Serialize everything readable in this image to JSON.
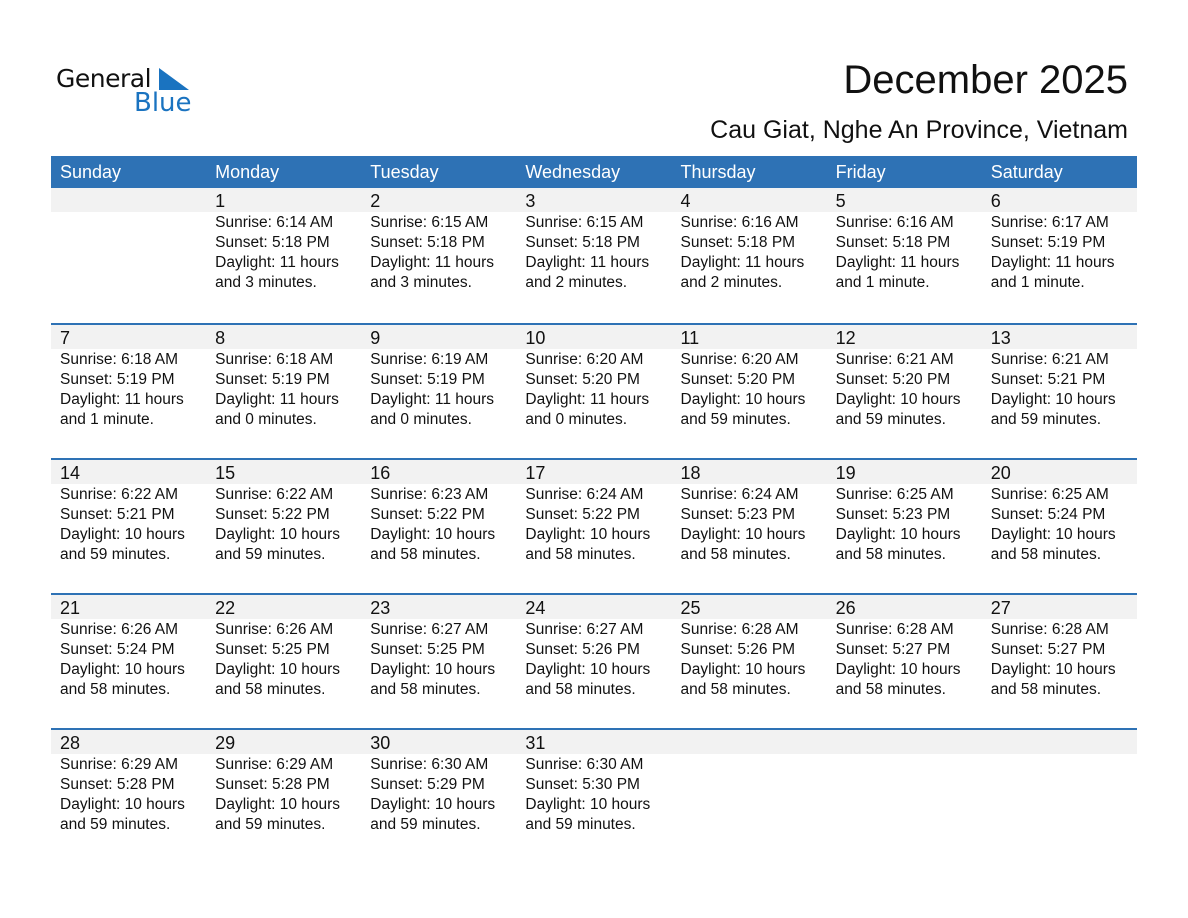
{
  "logo": {
    "general": "General",
    "blue": "Blue",
    "accent": "#1a73c0"
  },
  "title": "December 2025",
  "subtitle": "Cau Giat, Nghe An Province, Vietnam",
  "header_color": "#2e72b5",
  "weekdays": [
    "Sunday",
    "Monday",
    "Tuesday",
    "Wednesday",
    "Thursday",
    "Friday",
    "Saturday"
  ],
  "weeks": [
    [
      null,
      {
        "day": "1",
        "sunrise": "Sunrise: 6:14 AM",
        "sunset": "Sunset: 5:18 PM",
        "daylight": "Daylight: 11 hours",
        "daylight2": "and 3 minutes."
      },
      {
        "day": "2",
        "sunrise": "Sunrise: 6:15 AM",
        "sunset": "Sunset: 5:18 PM",
        "daylight": "Daylight: 11 hours",
        "daylight2": "and 3 minutes."
      },
      {
        "day": "3",
        "sunrise": "Sunrise: 6:15 AM",
        "sunset": "Sunset: 5:18 PM",
        "daylight": "Daylight: 11 hours",
        "daylight2": "and 2 minutes."
      },
      {
        "day": "4",
        "sunrise": "Sunrise: 6:16 AM",
        "sunset": "Sunset: 5:18 PM",
        "daylight": "Daylight: 11 hours",
        "daylight2": "and 2 minutes."
      },
      {
        "day": "5",
        "sunrise": "Sunrise: 6:16 AM",
        "sunset": "Sunset: 5:18 PM",
        "daylight": "Daylight: 11 hours",
        "daylight2": "and 1 minute."
      },
      {
        "day": "6",
        "sunrise": "Sunrise: 6:17 AM",
        "sunset": "Sunset: 5:19 PM",
        "daylight": "Daylight: 11 hours",
        "daylight2": "and 1 minute."
      }
    ],
    [
      {
        "day": "7",
        "sunrise": "Sunrise: 6:18 AM",
        "sunset": "Sunset: 5:19 PM",
        "daylight": "Daylight: 11 hours",
        "daylight2": "and 1 minute."
      },
      {
        "day": "8",
        "sunrise": "Sunrise: 6:18 AM",
        "sunset": "Sunset: 5:19 PM",
        "daylight": "Daylight: 11 hours",
        "daylight2": "and 0 minutes."
      },
      {
        "day": "9",
        "sunrise": "Sunrise: 6:19 AM",
        "sunset": "Sunset: 5:19 PM",
        "daylight": "Daylight: 11 hours",
        "daylight2": "and 0 minutes."
      },
      {
        "day": "10",
        "sunrise": "Sunrise: 6:20 AM",
        "sunset": "Sunset: 5:20 PM",
        "daylight": "Daylight: 11 hours",
        "daylight2": "and 0 minutes."
      },
      {
        "day": "11",
        "sunrise": "Sunrise: 6:20 AM",
        "sunset": "Sunset: 5:20 PM",
        "daylight": "Daylight: 10 hours",
        "daylight2": "and 59 minutes."
      },
      {
        "day": "12",
        "sunrise": "Sunrise: 6:21 AM",
        "sunset": "Sunset: 5:20 PM",
        "daylight": "Daylight: 10 hours",
        "daylight2": "and 59 minutes."
      },
      {
        "day": "13",
        "sunrise": "Sunrise: 6:21 AM",
        "sunset": "Sunset: 5:21 PM",
        "daylight": "Daylight: 10 hours",
        "daylight2": "and 59 minutes."
      }
    ],
    [
      {
        "day": "14",
        "sunrise": "Sunrise: 6:22 AM",
        "sunset": "Sunset: 5:21 PM",
        "daylight": "Daylight: 10 hours",
        "daylight2": "and 59 minutes."
      },
      {
        "day": "15",
        "sunrise": "Sunrise: 6:22 AM",
        "sunset": "Sunset: 5:22 PM",
        "daylight": "Daylight: 10 hours",
        "daylight2": "and 59 minutes."
      },
      {
        "day": "16",
        "sunrise": "Sunrise: 6:23 AM",
        "sunset": "Sunset: 5:22 PM",
        "daylight": "Daylight: 10 hours",
        "daylight2": "and 58 minutes."
      },
      {
        "day": "17",
        "sunrise": "Sunrise: 6:24 AM",
        "sunset": "Sunset: 5:22 PM",
        "daylight": "Daylight: 10 hours",
        "daylight2": "and 58 minutes."
      },
      {
        "day": "18",
        "sunrise": "Sunrise: 6:24 AM",
        "sunset": "Sunset: 5:23 PM",
        "daylight": "Daylight: 10 hours",
        "daylight2": "and 58 minutes."
      },
      {
        "day": "19",
        "sunrise": "Sunrise: 6:25 AM",
        "sunset": "Sunset: 5:23 PM",
        "daylight": "Daylight: 10 hours",
        "daylight2": "and 58 minutes."
      },
      {
        "day": "20",
        "sunrise": "Sunrise: 6:25 AM",
        "sunset": "Sunset: 5:24 PM",
        "daylight": "Daylight: 10 hours",
        "daylight2": "and 58 minutes."
      }
    ],
    [
      {
        "day": "21",
        "sunrise": "Sunrise: 6:26 AM",
        "sunset": "Sunset: 5:24 PM",
        "daylight": "Daylight: 10 hours",
        "daylight2": "and 58 minutes."
      },
      {
        "day": "22",
        "sunrise": "Sunrise: 6:26 AM",
        "sunset": "Sunset: 5:25 PM",
        "daylight": "Daylight: 10 hours",
        "daylight2": "and 58 minutes."
      },
      {
        "day": "23",
        "sunrise": "Sunrise: 6:27 AM",
        "sunset": "Sunset: 5:25 PM",
        "daylight": "Daylight: 10 hours",
        "daylight2": "and 58 minutes."
      },
      {
        "day": "24",
        "sunrise": "Sunrise: 6:27 AM",
        "sunset": "Sunset: 5:26 PM",
        "daylight": "Daylight: 10 hours",
        "daylight2": "and 58 minutes."
      },
      {
        "day": "25",
        "sunrise": "Sunrise: 6:28 AM",
        "sunset": "Sunset: 5:26 PM",
        "daylight": "Daylight: 10 hours",
        "daylight2": "and 58 minutes."
      },
      {
        "day": "26",
        "sunrise": "Sunrise: 6:28 AM",
        "sunset": "Sunset: 5:27 PM",
        "daylight": "Daylight: 10 hours",
        "daylight2": "and 58 minutes."
      },
      {
        "day": "27",
        "sunrise": "Sunrise: 6:28 AM",
        "sunset": "Sunset: 5:27 PM",
        "daylight": "Daylight: 10 hours",
        "daylight2": "and 58 minutes."
      }
    ],
    [
      {
        "day": "28",
        "sunrise": "Sunrise: 6:29 AM",
        "sunset": "Sunset: 5:28 PM",
        "daylight": "Daylight: 10 hours",
        "daylight2": "and 59 minutes."
      },
      {
        "day": "29",
        "sunrise": "Sunrise: 6:29 AM",
        "sunset": "Sunset: 5:28 PM",
        "daylight": "Daylight: 10 hours",
        "daylight2": "and 59 minutes."
      },
      {
        "day": "30",
        "sunrise": "Sunrise: 6:30 AM",
        "sunset": "Sunset: 5:29 PM",
        "daylight": "Daylight: 10 hours",
        "daylight2": "and 59 minutes."
      },
      {
        "day": "31",
        "sunrise": "Sunrise: 6:30 AM",
        "sunset": "Sunset: 5:30 PM",
        "daylight": "Daylight: 10 hours",
        "daylight2": "and 59 minutes."
      },
      null,
      null,
      null
    ]
  ]
}
